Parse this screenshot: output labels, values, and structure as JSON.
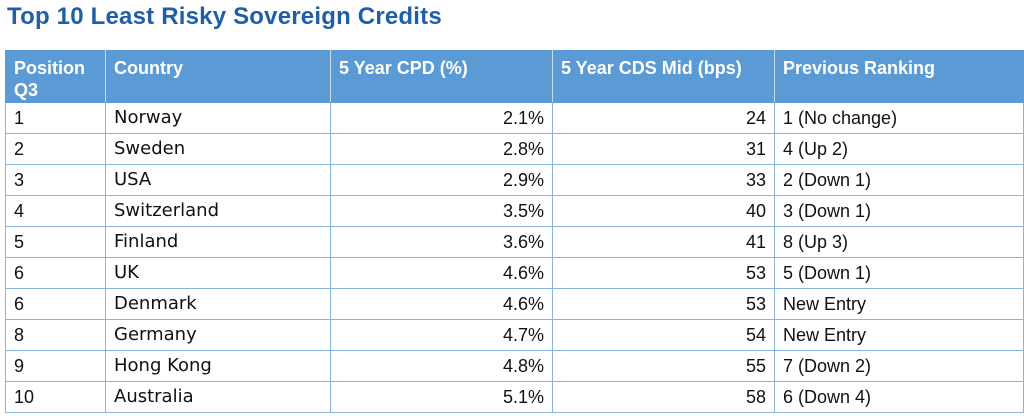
{
  "title": "Top 10 Least Risky Sovereign Credits",
  "table": {
    "headers": {
      "position": "Position Q3",
      "country": "Country",
      "cpd": "5 Year CPD (%)",
      "cds": "5 Year CDS Mid (bps)",
      "previous": "Previous Ranking"
    },
    "rows": [
      {
        "position": "1",
        "country": "Norway",
        "cpd": "2.1%",
        "cds": "24",
        "previous": "1 (No change)",
        "trend": "neutral"
      },
      {
        "position": "2",
        "country": "Sweden",
        "cpd": "2.8%",
        "cds": "31",
        "previous": "4 (Up 2)",
        "trend": "up"
      },
      {
        "position": "3",
        "country": "USA",
        "cpd": "2.9%",
        "cds": "33",
        "previous": "2 (Down 1)",
        "trend": "down"
      },
      {
        "position": "4",
        "country": "Switzerland",
        "cpd": "3.5%",
        "cds": "40",
        "previous": "3 (Down 1)",
        "trend": "down"
      },
      {
        "position": "5",
        "country": "Finland",
        "cpd": "3.6%",
        "cds": "41",
        "previous": "8 (Up 3)",
        "trend": "up"
      },
      {
        "position": "6",
        "country": "UK",
        "cpd": "4.6%",
        "cds": "53",
        "previous": "5 (Down 1)",
        "trend": "down"
      },
      {
        "position": "6",
        "country": "Denmark",
        "cpd": "4.6%",
        "cds": "53",
        "previous": "New Entry",
        "trend": "neutral"
      },
      {
        "position": "8",
        "country": "Germany",
        "cpd": "4.7%",
        "cds": "54",
        "previous": "New Entry",
        "trend": "neutral"
      },
      {
        "position": "9",
        "country": "Hong Kong",
        "cpd": "4.8%",
        "cds": "55",
        "previous": "7 (Down 2)",
        "trend": "down"
      },
      {
        "position": "10",
        "country": "Australia",
        "cpd": "5.1%",
        "cds": "58",
        "previous": "6 (Down 4)",
        "trend": "down"
      }
    ]
  },
  "colors": {
    "title": "#1f5fa8",
    "header_bg": "#5b9bd5",
    "border": "#8ab4dc",
    "up": "#2ea04a",
    "down": "#e0242f"
  }
}
